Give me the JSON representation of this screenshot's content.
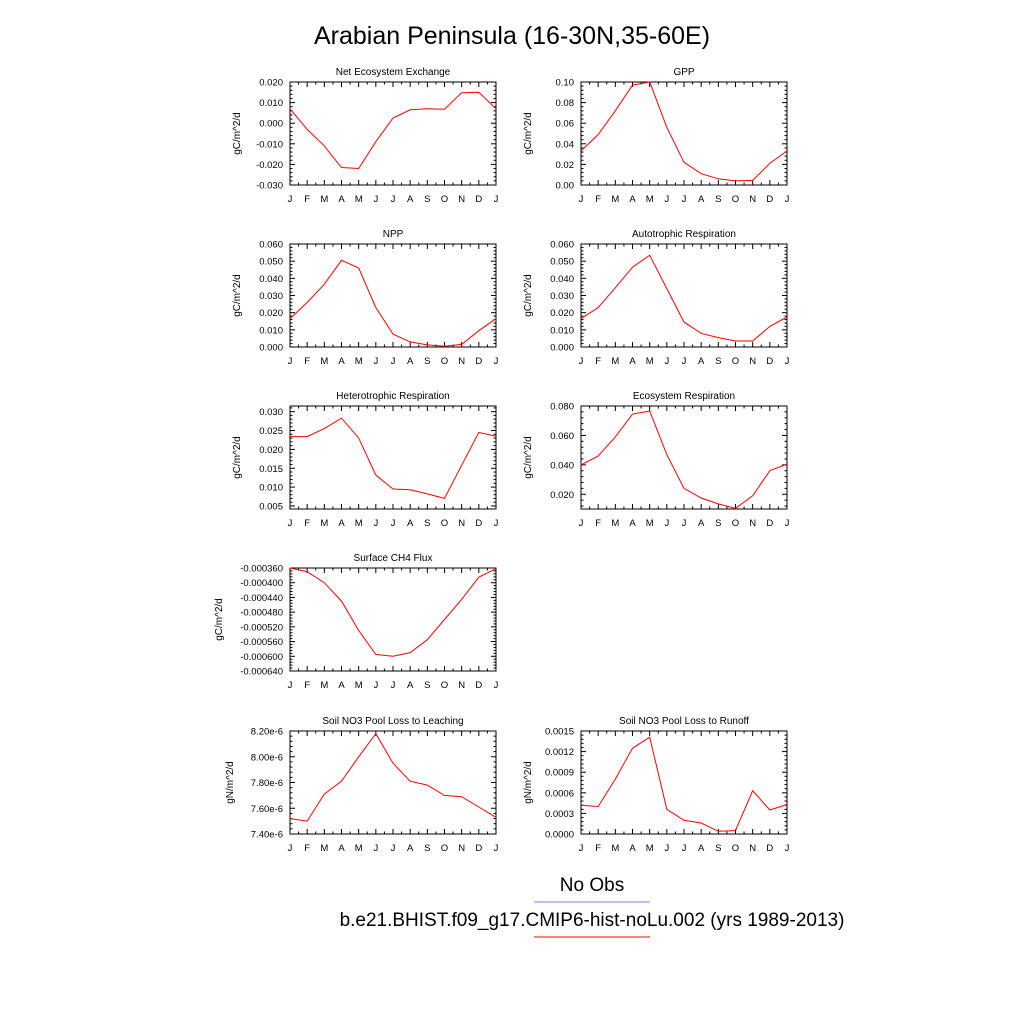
{
  "figure": {
    "title": "Arabian Peninsula (16-30N,35-60E)",
    "month_labels": [
      "J",
      "F",
      "M",
      "A",
      "M",
      "J",
      "J",
      "A",
      "S",
      "O",
      "N",
      "D",
      "J"
    ],
    "line_color": "#ff0000",
    "legend": [
      {
        "label": "No Obs",
        "color": "#7f7fe0"
      },
      {
        "label": "b.e21.BHIST.f09_g17.CMIP6-hist-noLu.002 (yrs 1989-2013)",
        "color": "#ff0000"
      }
    ]
  },
  "chart_data": [
    {
      "type": "line",
      "title": "Net Ecosystem Exchange",
      "ylabel": "gC/m^2/d",
      "ylim": [
        -0.03,
        0.02
      ],
      "yticks": [
        0.02,
        0.01,
        0.0,
        -0.01,
        -0.02,
        -0.03
      ],
      "yticklabels": [
        "0.020",
        "0.010",
        "0.000",
        "-0.010",
        "-0.020",
        "-0.030"
      ],
      "values": [
        0.007,
        -0.003,
        -0.011,
        -0.0215,
        -0.022,
        -0.009,
        0.0025,
        0.0065,
        0.007,
        0.0068,
        0.0148,
        0.015,
        0.007
      ]
    },
    {
      "type": "line",
      "title": "GPP",
      "ylabel": "gC/m^2/d",
      "ylim": [
        0,
        0.1
      ],
      "yticks": [
        0.1,
        0.08,
        0.06,
        0.04,
        0.02,
        0.0
      ],
      "yticklabels": [
        "0.10",
        "0.08",
        "0.06",
        "0.04",
        "0.02",
        "0.00"
      ],
      "values": [
        0.033,
        0.049,
        0.072,
        0.097,
        0.1,
        0.056,
        0.022,
        0.011,
        0.006,
        0.004,
        0.0045,
        0.021,
        0.033
      ]
    },
    {
      "type": "line",
      "title": "NPP",
      "ylabel": "gC/m^2/d",
      "ylim": [
        0,
        0.06
      ],
      "yticks": [
        0.06,
        0.05,
        0.04,
        0.03,
        0.02,
        0.01,
        0.0
      ],
      "yticklabels": [
        "0.060",
        "0.050",
        "0.040",
        "0.030",
        "0.020",
        "0.010",
        "0.000"
      ],
      "values": [
        0.0165,
        0.026,
        0.0365,
        0.0505,
        0.046,
        0.023,
        0.0075,
        0.003,
        0.0012,
        0.0004,
        0.0015,
        0.0095,
        0.0165
      ]
    },
    {
      "type": "line",
      "title": "Autotrophic Respiration",
      "ylabel": "gC/m^2/d",
      "ylim": [
        0,
        0.06
      ],
      "yticks": [
        0.06,
        0.05,
        0.04,
        0.03,
        0.02,
        0.01,
        0.0
      ],
      "yticklabels": [
        "0.060",
        "0.050",
        "0.040",
        "0.030",
        "0.020",
        "0.010",
        "0.000"
      ],
      "values": [
        0.0165,
        0.023,
        0.0345,
        0.0465,
        0.0535,
        0.034,
        0.0145,
        0.008,
        0.0055,
        0.0035,
        0.0035,
        0.012,
        0.0175
      ]
    },
    {
      "type": "line",
      "title": "Heterotrophic Respiration",
      "ylabel": "gC/m^2/d",
      "ylim": [
        0.0042,
        0.0315
      ],
      "yticks": [
        0.03,
        0.025,
        0.02,
        0.015,
        0.01,
        0.005
      ],
      "yticklabels": [
        "0.030",
        "0.025",
        "0.020",
        "0.015",
        "0.010",
        "0.005"
      ],
      "values": [
        0.0234,
        0.0234,
        0.0255,
        0.0283,
        0.023,
        0.0132,
        0.0095,
        0.0093,
        0.0082,
        0.007,
        0.0158,
        0.0245,
        0.0235
      ]
    },
    {
      "type": "line",
      "title": "Ecosystem Respiration",
      "ylabel": "gC/m^2/d",
      "ylim": [
        0.01,
        0.08
      ],
      "yticks": [
        0.08,
        0.06,
        0.04,
        0.02
      ],
      "yticklabels": [
        "0.080",
        "0.060",
        "0.040",
        "0.020"
      ],
      "values": [
        0.04,
        0.046,
        0.059,
        0.0745,
        0.0765,
        0.047,
        0.024,
        0.0175,
        0.0135,
        0.0105,
        0.019,
        0.036,
        0.0405
      ]
    },
    {
      "type": "line",
      "title": "Surface CH4 Flux",
      "ylabel": "gC/m^2/d",
      "ylim": [
        -0.00064,
        -0.00036
      ],
      "yticks": [
        -0.00036,
        -0.0004,
        -0.00044,
        -0.00048,
        -0.00052,
        -0.00056,
        -0.0006,
        -0.00064
      ],
      "yticklabels": [
        "-0.000360",
        "-0.000400",
        "-0.000440",
        "-0.000480",
        "-0.000520",
        "-0.000560",
        "-0.000600",
        "-0.000640"
      ],
      "values": [
        -0.00036,
        -0.00037,
        -0.0004,
        -0.00045,
        -0.00053,
        -0.000595,
        -0.0006,
        -0.00059,
        -0.000555,
        -0.0005,
        -0.000445,
        -0.000385,
        -0.000362
      ]
    },
    {
      "type": "line",
      "title": "Soil NO3 Pool Loss to Leaching",
      "ylabel": "gN/m^2/d",
      "ylim": [
        7.4e-06,
        8.2e-06
      ],
      "yticks": [
        8.2e-06,
        8e-06,
        7.8e-06,
        7.6e-06,
        7.4e-06
      ],
      "yticklabels": [
        "8.20e-6",
        "8.00e-6",
        "7.80e-6",
        "7.60e-6",
        "7.40e-6"
      ],
      "values": [
        7.52e-06,
        7.5e-06,
        7.71e-06,
        7.81e-06,
        8e-06,
        8.18e-06,
        7.95e-06,
        7.81e-06,
        7.78e-06,
        7.7e-06,
        7.69e-06,
        7.61e-06,
        7.53e-06
      ]
    },
    {
      "type": "line",
      "title": "Soil NO3 Pool Loss to Runoff",
      "ylabel": "gN/m^2/d",
      "ylim": [
        0,
        0.0015
      ],
      "yticks": [
        0.0015,
        0.0012,
        0.0009,
        0.0006,
        0.0003,
        0.0
      ],
      "yticklabels": [
        "0.0015",
        "0.0012",
        "0.0009",
        "0.0006",
        "0.0003",
        "0.0000"
      ],
      "values": [
        0.00042,
        0.0004,
        0.0008,
        0.00125,
        0.00141,
        0.00036,
        0.0002,
        0.00016,
        4e-05,
        5e-05,
        0.00063,
        0.00035,
        0.00043
      ]
    }
  ]
}
